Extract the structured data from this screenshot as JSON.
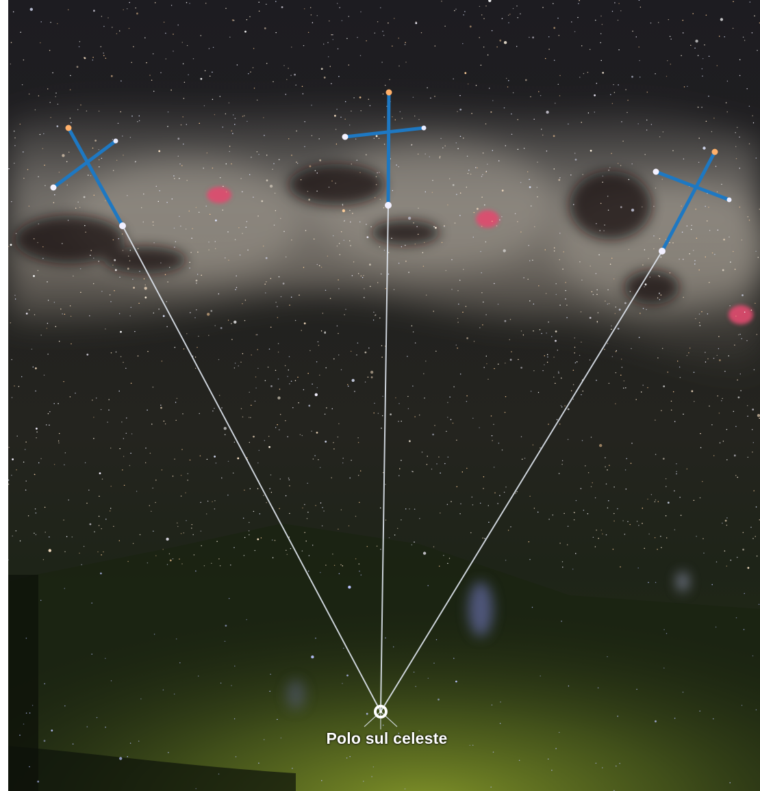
{
  "pole_label": "Polo sul celeste",
  "colors": {
    "sky_top": "#1e1e22",
    "sky_mid": "#24241f",
    "ground_glow": "#6e7f22",
    "ground_dark": "#16200f",
    "milky_way": "#b7b0a5",
    "constellation_lines": "#1e78c2",
    "pointer_lines": "#dfe6ef",
    "nebula": "#e04a6e",
    "label_text": "#ffffff"
  },
  "icons": {
    "pole_marker": "ring-marker-icon",
    "cross_figures": "southern-cross-icon"
  }
}
